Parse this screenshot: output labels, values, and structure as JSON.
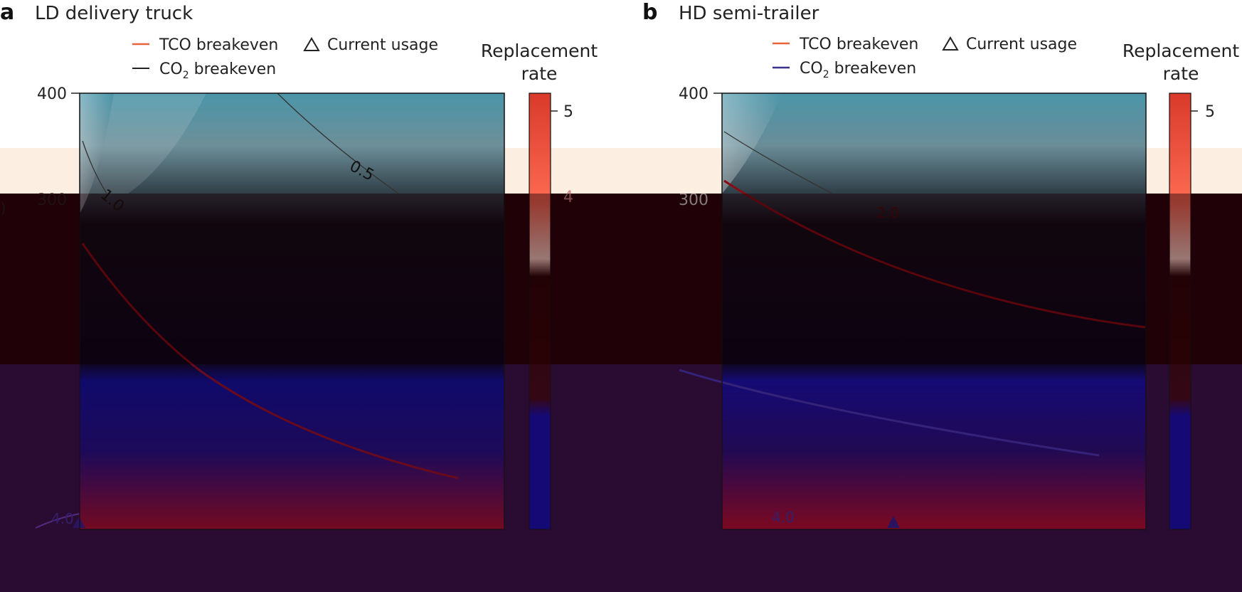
{
  "panels": [
    {
      "letter": "a",
      "title": "LD delivery truck",
      "legend": {
        "tco": "TCO breakeven",
        "current": "Current usage",
        "co2_prefix": "CO",
        "co2_sub": "2",
        "co2_suffix": " breakeven"
      },
      "colorbar": {
        "title_line1": "Replacement",
        "title_line2": "rate",
        "ticks": [
          "5",
          "4"
        ]
      },
      "y_ticks": [
        "400",
        "300"
      ],
      "contour_labels": [
        "1.0",
        "0.5",
        "4.0"
      ],
      "y_axis_fragment": ")"
    },
    {
      "letter": "b",
      "title": "HD semi-trailer",
      "legend": {
        "tco": "TCO breakeven",
        "current": "Current usage",
        "co2_prefix": "CO",
        "co2_sub": "2",
        "co2_suffix": " breakeven"
      },
      "colorbar": {
        "title_line1": "Replacement",
        "title_line2": "rate",
        "ticks": [
          "5"
        ]
      },
      "y_ticks": [
        "400",
        "300"
      ],
      "contour_labels": [
        "2.0",
        "4.0"
      ]
    }
  ],
  "colors": {
    "tco_line": "#e8643a",
    "co2_line": "#3b2f8c",
    "teal": "#2f8296",
    "colorbar_top": "#d93a2b"
  },
  "chart_data": [
    {
      "type": "heatmap",
      "title": "LD delivery truck",
      "ytick_labels": [
        "400",
        "300"
      ],
      "yticks": [
        400,
        300
      ],
      "colorbar_ticks": [
        5,
        4
      ],
      "colorbar_label": "Replacement rate",
      "contours": [
        1.0,
        0.5,
        4.0
      ],
      "legend_entries": [
        "TCO breakeven",
        "Current usage",
        "CO2 breakeven"
      ],
      "legend_position": "top"
    },
    {
      "type": "heatmap",
      "title": "HD semi-trailer",
      "ytick_labels": [
        "400",
        "300"
      ],
      "yticks": [
        400,
        300
      ],
      "colorbar_ticks": [
        5
      ],
      "colorbar_label": "Replacement rate",
      "contours": [
        2.0,
        4.0
      ],
      "legend_entries": [
        "TCO breakeven",
        "Current usage",
        "CO2 breakeven"
      ],
      "legend_position": "top"
    }
  ]
}
